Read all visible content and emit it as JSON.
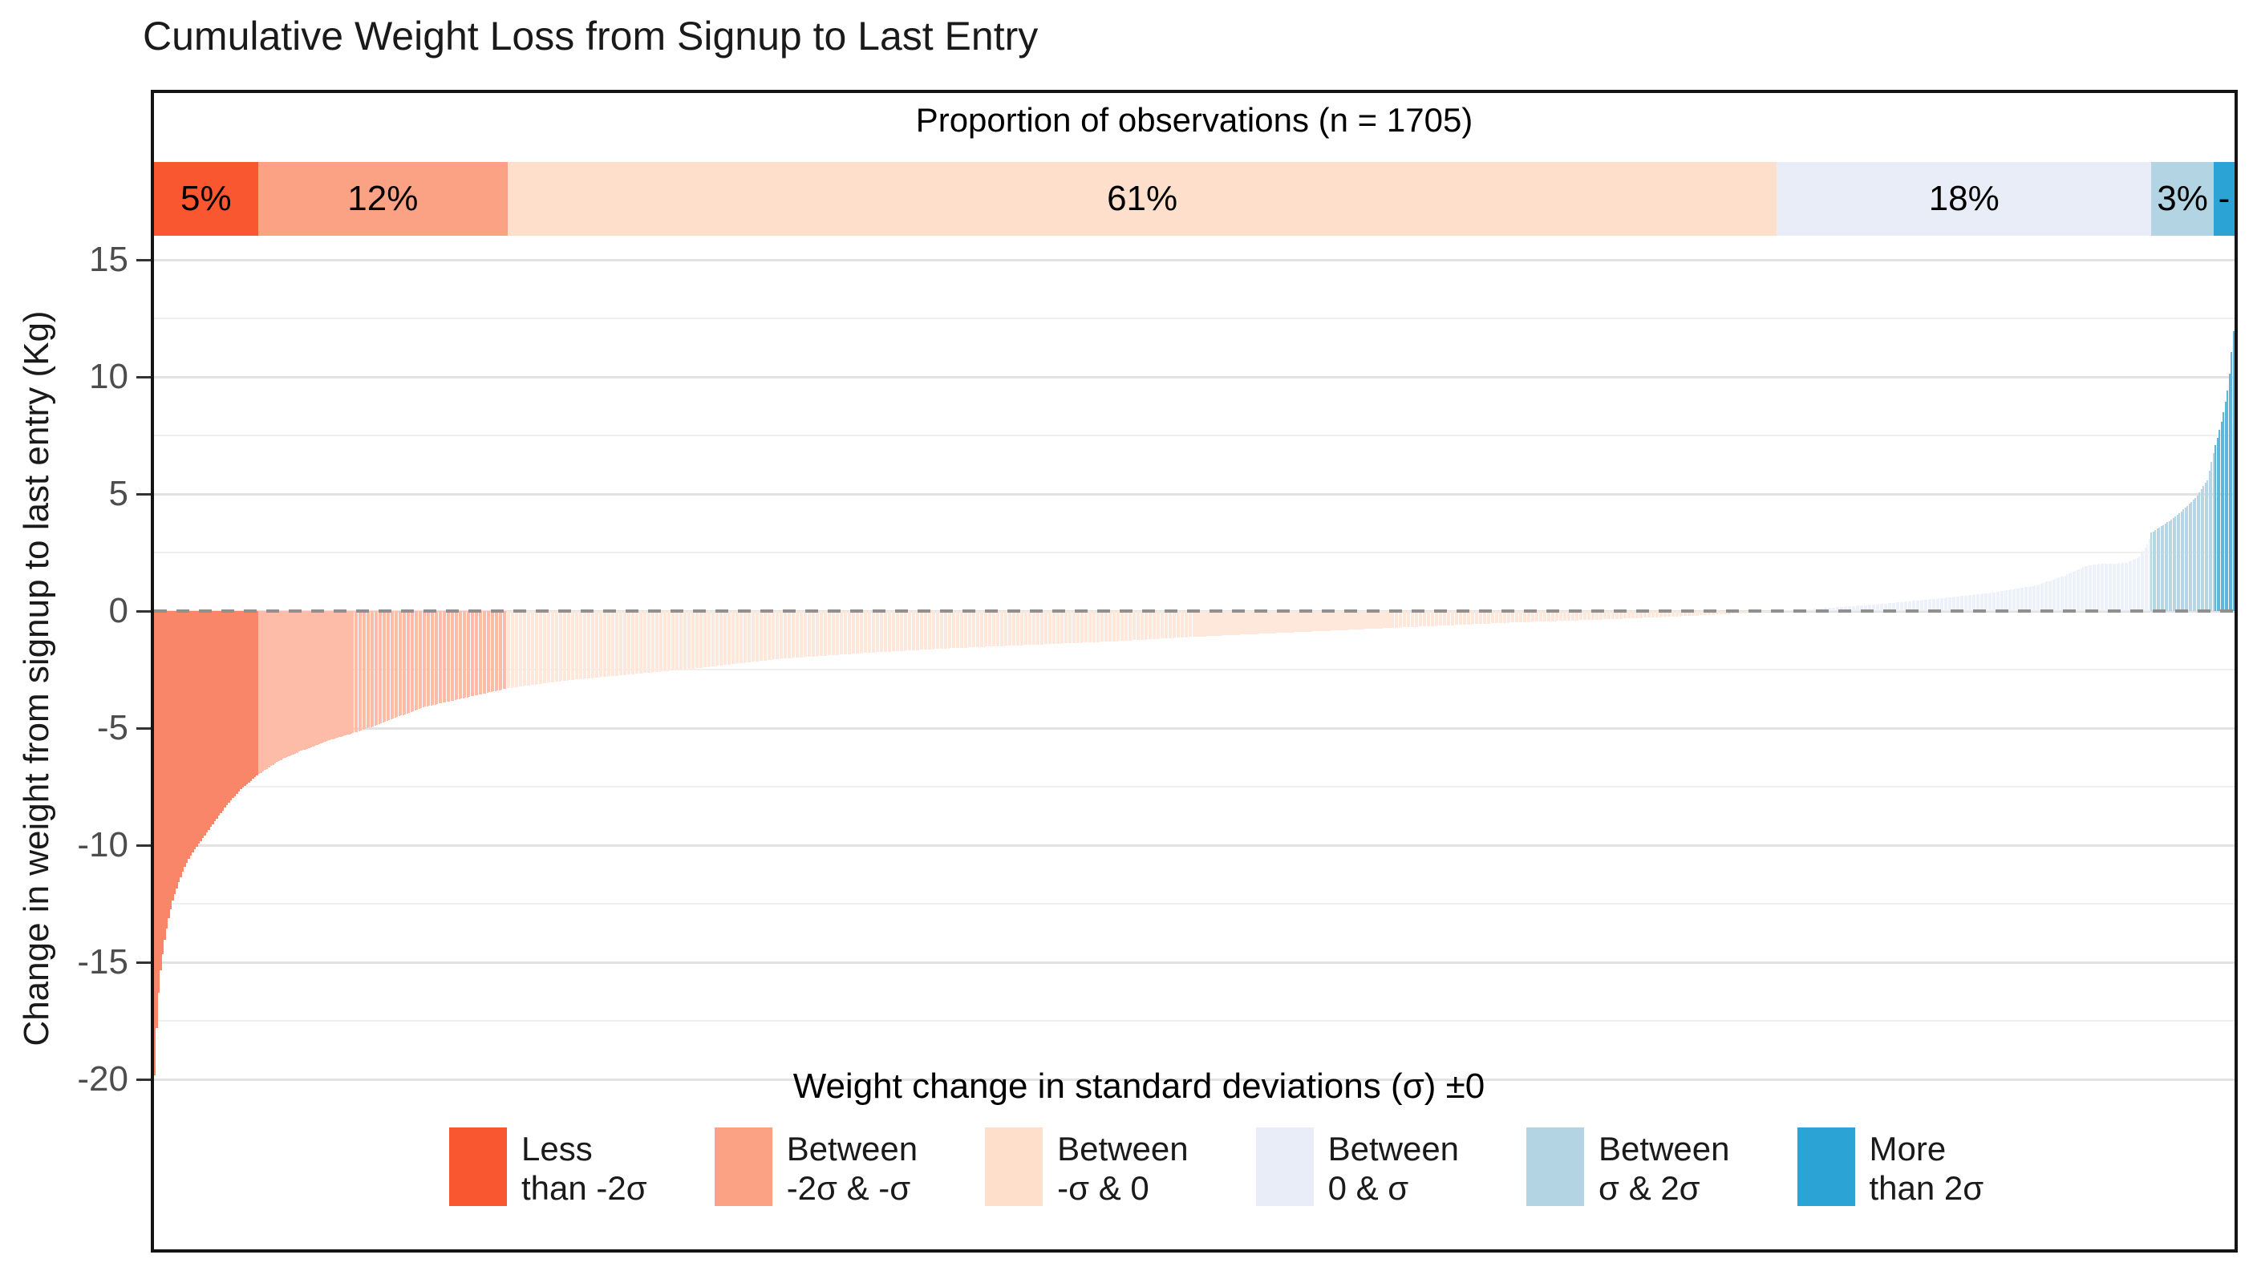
{
  "title": "Cumulative Weight Loss from Signup to Last Entry",
  "top_band": {
    "header": "Proportion of observations (n = 1705)",
    "segments": [
      {
        "label": "5%",
        "percent": 5,
        "color": "#F8572F"
      },
      {
        "label": "12%",
        "percent": 12,
        "color": "#FBA285"
      },
      {
        "label": "61%",
        "percent": 61,
        "color": "#FDDFCC"
      },
      {
        "label": "18%",
        "percent": 18,
        "color": "#E8EDF8"
      },
      {
        "label": "3%",
        "percent": 3,
        "color": "#B2D4E3"
      },
      {
        "label": "-",
        "percent": 1,
        "color": "#2BA3D4"
      }
    ]
  },
  "y_axis": {
    "title": "Change in weight from signup to last entry (Kg)",
    "tick_labels": [
      "15",
      "10",
      "5",
      "0",
      "-5",
      "-10",
      "-15",
      "-20"
    ],
    "tick_values": [
      15,
      10,
      5,
      0,
      -5,
      -10,
      -15,
      -20
    ],
    "minor_gridlines": [
      12.5,
      7.5,
      2.5,
      -2.5,
      -7.5,
      -12.5,
      -17.5
    ]
  },
  "legend": {
    "title": "Weight change in standard deviations (σ) ±0",
    "entries": [
      {
        "line1": "Less",
        "line2": "than -2σ",
        "color": "#F8572F"
      },
      {
        "line1": "Between",
        "line2": "-2σ & -σ",
        "color": "#FBA285"
      },
      {
        "line1": "Between",
        "line2": "-σ & 0",
        "color": "#FDDFCC"
      },
      {
        "line1": "Between",
        "line2": "0 & σ",
        "color": "#E8EDF8"
      },
      {
        "line1": "Between",
        "line2": "σ & 2σ",
        "color": "#B2D4E3"
      },
      {
        "line1": "More",
        "line2": "than 2σ",
        "color": "#2BA3D4"
      }
    ]
  },
  "chart_data": {
    "type": "bar",
    "title": "Cumulative Weight Loss from Signup to Last Entry",
    "n_observations": 1705,
    "xlabel": "",
    "ylabel": "Change in weight from signup to last entry (Kg)",
    "ylim": [
      -22,
      17
    ],
    "zero_reference_line": 0,
    "grid": true,
    "legend_position": "bottom-inside",
    "sigma_groups": [
      {
        "name": "Less than -2σ",
        "proportion_label": "5%",
        "proportion": 0.05,
        "color": "#F8572F",
        "bar_fill": "#FA8669"
      },
      {
        "name": "Between -2σ & -σ",
        "proportion_label": "12%",
        "proportion": 0.12,
        "color": "#FBA285",
        "bar_fill": "#FCBCA7"
      },
      {
        "name": "Between -σ & 0",
        "proportion_label": "61%",
        "proportion": 0.61,
        "color": "#FDDFCC",
        "bar_fill": "#FEE8DB"
      },
      {
        "name": "Between 0 & σ",
        "proportion_label": "18%",
        "proportion": 0.18,
        "color": "#E8EDF8",
        "bar_fill": "#EDF1F9"
      },
      {
        "name": "Between σ & 2σ",
        "proportion_label": "3%",
        "proportion": 0.03,
        "color": "#B2D4E3",
        "bar_fill": "#B7D6E5"
      },
      {
        "name": "More than 2σ",
        "proportion_label": "-",
        "proportion": 0.01,
        "color": "#2BA3D4",
        "bar_fill": "#5EB6DA"
      }
    ],
    "group_boundaries_fraction": [
      0.05,
      0.17,
      0.78,
      0.96,
      0.99
    ],
    "sorted_curve_fraction_vs_kg": [
      [
        0,
        -21
      ],
      [
        0.001,
        -18.6
      ],
      [
        0.002,
        -16.8
      ],
      [
        0.003,
        -15.6
      ],
      [
        0.005,
        -14.2
      ],
      [
        0.007,
        -13.2
      ],
      [
        0.009,
        -12.4
      ],
      [
        0.012,
        -11.6
      ],
      [
        0.015,
        -10.9
      ],
      [
        0.018,
        -10.4
      ],
      [
        0.022,
        -9.9
      ],
      [
        0.026,
        -9.4
      ],
      [
        0.03,
        -8.9
      ],
      [
        0.035,
        -8.3
      ],
      [
        0.042,
        -7.6
      ],
      [
        0.05,
        -7.0
      ],
      [
        0.06,
        -6.4
      ],
      [
        0.07,
        -6.0
      ],
      [
        0.085,
        -5.5
      ],
      [
        0.1,
        -5.1
      ],
      [
        0.115,
        -4.6
      ],
      [
        0.13,
        -4.1
      ],
      [
        0.15,
        -3.7
      ],
      [
        0.17,
        -3.3
      ],
      [
        0.2,
        -2.95
      ],
      [
        0.23,
        -2.7
      ],
      [
        0.26,
        -2.45
      ],
      [
        0.3,
        -2.05
      ],
      [
        0.34,
        -1.8
      ],
      [
        0.38,
        -1.6
      ],
      [
        0.42,
        -1.45
      ],
      [
        0.46,
        -1.3
      ],
      [
        0.5,
        -1.1
      ],
      [
        0.55,
        -0.9
      ],
      [
        0.6,
        -0.7
      ],
      [
        0.65,
        -0.5
      ],
      [
        0.7,
        -0.35
      ],
      [
        0.74,
        -0.2
      ],
      [
        0.78,
        -0.02
      ],
      [
        0.8,
        0.1
      ],
      [
        0.83,
        0.3
      ],
      [
        0.86,
        0.55
      ],
      [
        0.885,
        0.8
      ],
      [
        0.905,
        1.1
      ],
      [
        0.918,
        1.5
      ],
      [
        0.928,
        1.9
      ],
      [
        0.933,
        2.0
      ],
      [
        0.948,
        2.05
      ],
      [
        0.954,
        2.3
      ],
      [
        0.958,
        2.8
      ],
      [
        0.96,
        3.35
      ],
      [
        0.968,
        3.8
      ],
      [
        0.975,
        4.3
      ],
      [
        0.982,
        4.9
      ],
      [
        0.987,
        5.6
      ],
      [
        0.99,
        6.8
      ],
      [
        0.993,
        7.8
      ],
      [
        0.995,
        8.6
      ],
      [
        0.997,
        9.6
      ],
      [
        0.9985,
        11.0
      ],
      [
        1,
        12.4
      ]
    ]
  }
}
